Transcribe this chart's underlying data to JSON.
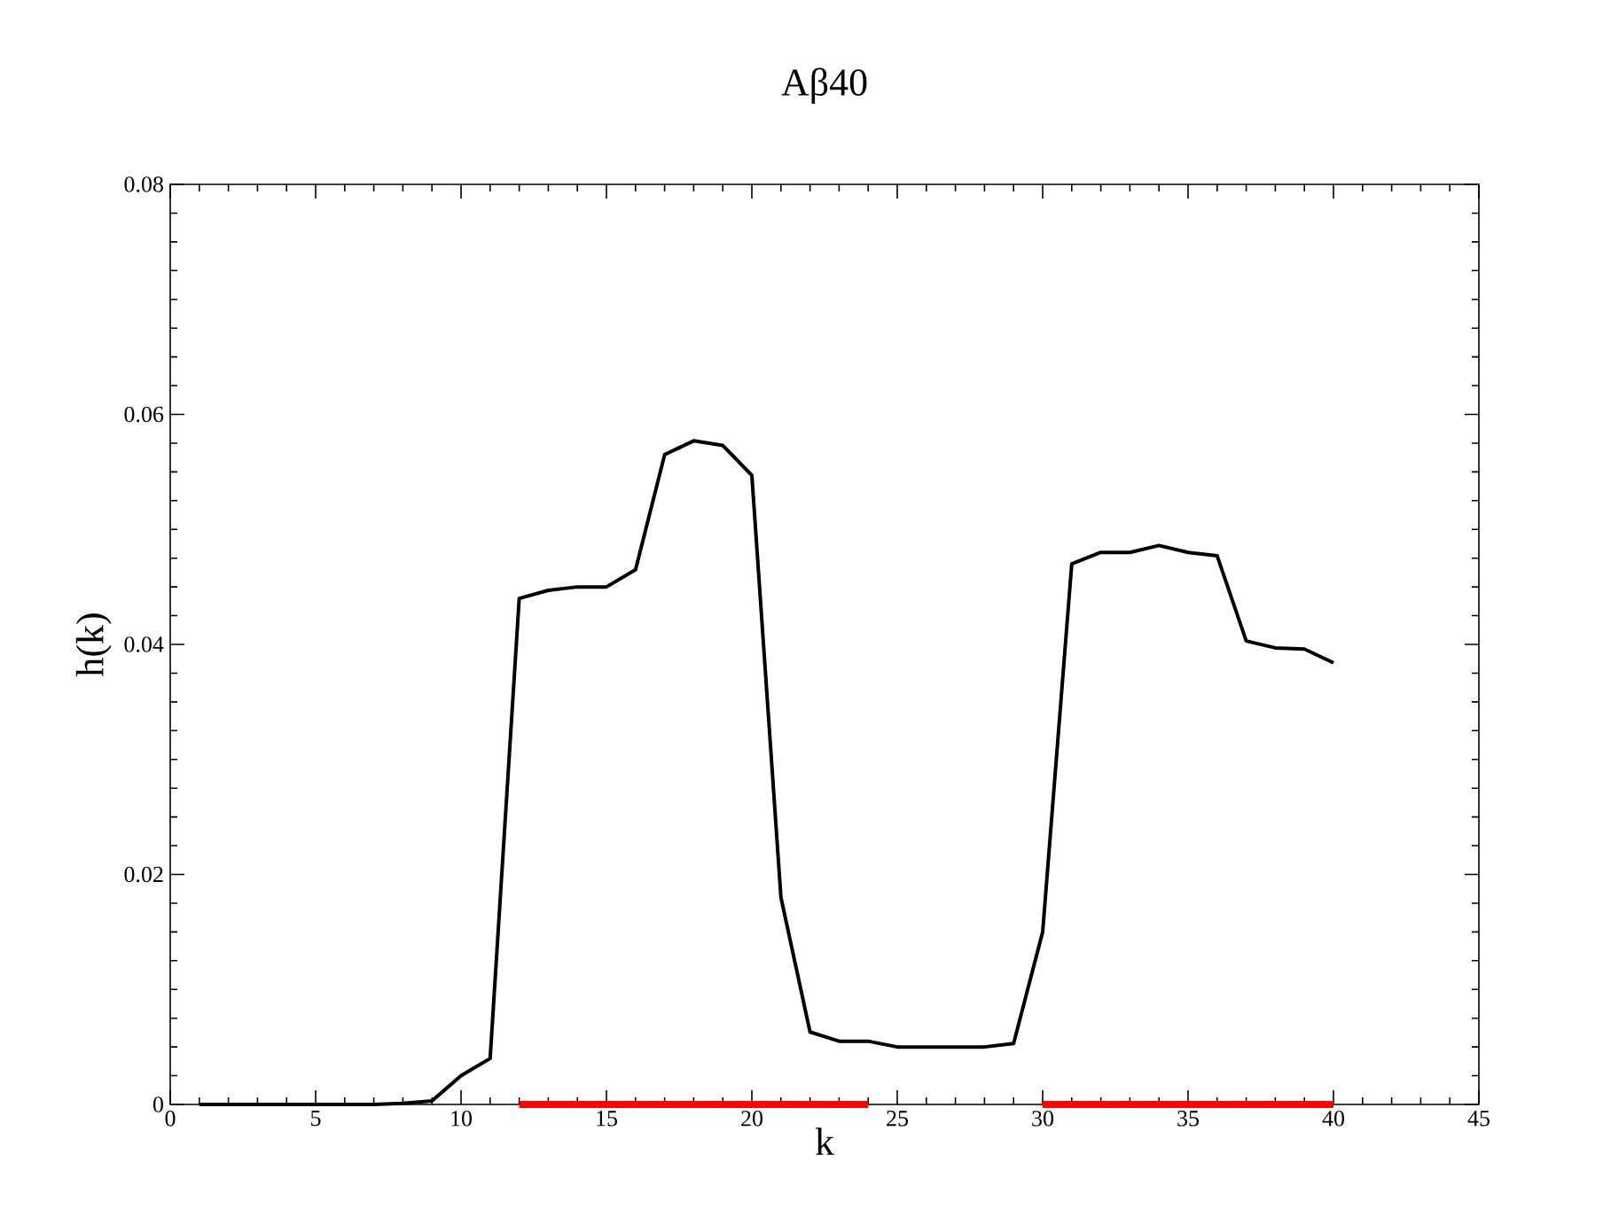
{
  "chart_data": {
    "type": "line",
    "title": "Aβ40",
    "xlabel": "k",
    "ylabel": "h(k)",
    "x": [
      1,
      2,
      3,
      4,
      5,
      6,
      7,
      8,
      9,
      10,
      11,
      12,
      13,
      14,
      15,
      16,
      17,
      18,
      19,
      20,
      21,
      22,
      23,
      24,
      25,
      26,
      27,
      28,
      29,
      30,
      31,
      32,
      33,
      34,
      35,
      36,
      37,
      38,
      39,
      40
    ],
    "series": [
      {
        "color": "#000000",
        "values": [
          0,
          0,
          0,
          0,
          0,
          0,
          0,
          0.0001,
          0.0003,
          0.0025,
          0.004,
          0.044,
          0.0447,
          0.045,
          0.045,
          0.0465,
          0.0565,
          0.0577,
          0.0573,
          0.0547,
          0.018,
          0.0063,
          0.0055,
          0.0055,
          0.005,
          0.005,
          0.005,
          0.005,
          0.0053,
          0.015,
          0.047,
          0.048,
          0.048,
          0.0486,
          0.048,
          0.0477,
          0.0403,
          0.0397,
          0.0396,
          0.0384
        ]
      },
      {
        "color": "#ff0000",
        "x": [
          12,
          24
        ],
        "values": [
          0,
          0
        ]
      },
      {
        "color": "#ff0000",
        "x": [
          30,
          40
        ],
        "values": [
          0,
          0
        ]
      }
    ],
    "xlim": [
      0,
      45
    ],
    "ylim": [
      0,
      0.08
    ],
    "xticks": [
      0,
      5,
      10,
      15,
      20,
      25,
      30,
      35,
      40,
      45
    ],
    "yticks": [
      0,
      0.02,
      0.04,
      0.06,
      0.08
    ],
    "grid": false,
    "marker": "none",
    "line_style": "solid"
  }
}
